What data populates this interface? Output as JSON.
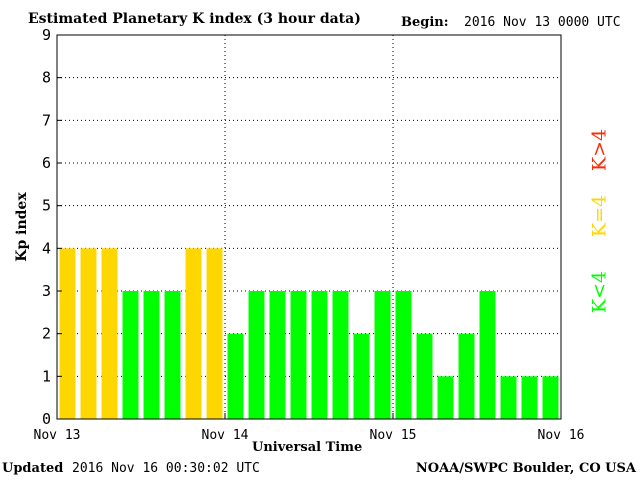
{
  "header": {
    "title": "Estimated Planetary K index (3 hour data)",
    "begin_label": "Begin:",
    "begin_value": "2016 Nov 13 0000 UTC"
  },
  "footer": {
    "updated_label": "Updated",
    "updated_value": "2016 Nov 16 00:30:02 UTC",
    "source": "NOAA/SWPC Boulder, CO USA"
  },
  "legend": {
    "high": "K>4",
    "mid": "K=4",
    "low": "K<4"
  },
  "colors": {
    "green": "#00ff00",
    "yellow": "#ffd700",
    "red": "#ff2a00",
    "grid": "#000000"
  },
  "chart_data": {
    "type": "bar",
    "xlabel": "Universal Time",
    "ylabel": "Kp index",
    "ylim": [
      0,
      9
    ],
    "yticks": [
      0,
      1,
      2,
      3,
      4,
      5,
      6,
      7,
      8,
      9
    ],
    "xtick_labels": [
      "Nov 13",
      "Nov 14",
      "Nov 15",
      "Nov 16"
    ],
    "grid": true,
    "legend_position": "right",
    "values": [
      4,
      4,
      4,
      3,
      3,
      3,
      4,
      4,
      2,
      3,
      3,
      3,
      3,
      3,
      2,
      3,
      3,
      2,
      1,
      2,
      3,
      1,
      1,
      1
    ]
  }
}
